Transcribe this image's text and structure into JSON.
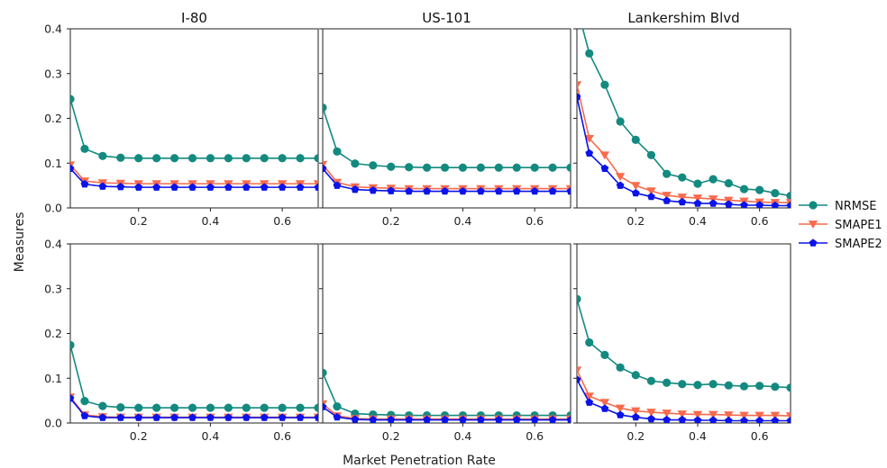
{
  "figure": {
    "xlabel": "Market Penetration Rate",
    "ylabel": "Measures"
  },
  "legend": {
    "placement": "right",
    "entries": [
      {
        "name": "NRMSE",
        "color": "#138a80",
        "marker": "circle"
      },
      {
        "name": "SMAPE1",
        "color": "#f86a4c",
        "marker": "triangle-down"
      },
      {
        "name": "SMAPE2",
        "color": "#0b13e8",
        "marker": "pentagon"
      }
    ]
  },
  "chart_data": [
    {
      "type": "line",
      "title": "I-80",
      "row": 1,
      "col": 1,
      "xlim": [
        0.01,
        0.7
      ],
      "ylim": [
        0,
        0.4
      ],
      "xticks": [
        "0.2",
        "0.4",
        "0.6"
      ],
      "yticks": [
        "0.0",
        "0.1",
        "0.2",
        "0.3",
        "0.4"
      ],
      "x": [
        0.01,
        0.05,
        0.1,
        0.15,
        0.2,
        0.25,
        0.3,
        0.35,
        0.4,
        0.45,
        0.5,
        0.55,
        0.6,
        0.65,
        0.7
      ],
      "series": [
        {
          "name": "NRMSE",
          "values": [
            0.243,
            0.132,
            0.116,
            0.112,
            0.111,
            0.111,
            0.111,
            0.111,
            0.111,
            0.111,
            0.111,
            0.111,
            0.111,
            0.111,
            0.111
          ]
        },
        {
          "name": "SMAPE1",
          "values": [
            0.096,
            0.06,
            0.056,
            0.055,
            0.054,
            0.054,
            0.054,
            0.054,
            0.054,
            0.054,
            0.054,
            0.054,
            0.054,
            0.054,
            0.054
          ]
        },
        {
          "name": "SMAPE2",
          "values": [
            0.088,
            0.053,
            0.048,
            0.047,
            0.046,
            0.046,
            0.046,
            0.046,
            0.046,
            0.046,
            0.046,
            0.046,
            0.046,
            0.046,
            0.046
          ]
        }
      ]
    },
    {
      "type": "line",
      "title": "US-101",
      "row": 1,
      "col": 2,
      "xlim": [
        0.01,
        0.7
      ],
      "ylim": [
        0,
        0.4
      ],
      "xticks": [
        "0.2",
        "0.4",
        "0.6"
      ],
      "yticks": [],
      "x": [
        0.01,
        0.05,
        0.1,
        0.15,
        0.2,
        0.25,
        0.3,
        0.35,
        0.4,
        0.45,
        0.5,
        0.55,
        0.6,
        0.65,
        0.7
      ],
      "series": [
        {
          "name": "NRMSE",
          "values": [
            0.224,
            0.126,
            0.099,
            0.095,
            0.092,
            0.091,
            0.09,
            0.09,
            0.09,
            0.09,
            0.09,
            0.09,
            0.09,
            0.09,
            0.09
          ]
        },
        {
          "name": "SMAPE1",
          "values": [
            0.097,
            0.057,
            0.047,
            0.045,
            0.044,
            0.043,
            0.043,
            0.043,
            0.043,
            0.043,
            0.043,
            0.043,
            0.043,
            0.043,
            0.043
          ]
        },
        {
          "name": "SMAPE2",
          "values": [
            0.088,
            0.05,
            0.041,
            0.039,
            0.038,
            0.037,
            0.037,
            0.037,
            0.037,
            0.037,
            0.037,
            0.037,
            0.037,
            0.037,
            0.037
          ]
        }
      ]
    },
    {
      "type": "line",
      "title": "Lankershim Blvd",
      "row": 1,
      "col": 3,
      "xlim": [
        0.01,
        0.7
      ],
      "ylim": [
        0,
        0.4
      ],
      "xticks": [
        "0.2",
        "0.4",
        "0.6"
      ],
      "yticks": [],
      "x": [
        0.01,
        0.05,
        0.1,
        0.15,
        0.2,
        0.25,
        0.3,
        0.35,
        0.4,
        0.45,
        0.5,
        0.55,
        0.6,
        0.65,
        0.7
      ],
      "series": [
        {
          "name": "NRMSE",
          "values": [
            0.45,
            0.345,
            0.275,
            0.193,
            0.152,
            0.118,
            0.076,
            0.068,
            0.054,
            0.064,
            0.055,
            0.042,
            0.04,
            0.033,
            0.027
          ]
        },
        {
          "name": "SMAPE1",
          "values": [
            0.275,
            0.155,
            0.118,
            0.07,
            0.05,
            0.038,
            0.028,
            0.024,
            0.022,
            0.02,
            0.017,
            0.015,
            0.013,
            0.012,
            0.012
          ]
        },
        {
          "name": "SMAPE2",
          "values": [
            0.248,
            0.122,
            0.088,
            0.05,
            0.033,
            0.025,
            0.016,
            0.013,
            0.01,
            0.01,
            0.008,
            0.006,
            0.006,
            0.005,
            0.005
          ]
        }
      ]
    },
    {
      "type": "line",
      "title": "",
      "row": 2,
      "col": 1,
      "xlim": [
        0.01,
        0.7
      ],
      "ylim": [
        0,
        0.4
      ],
      "xticks": [
        "0.2",
        "0.4",
        "0.6"
      ],
      "yticks": [
        "0.0",
        "0.1",
        "0.2",
        "0.3",
        "0.4"
      ],
      "x": [
        0.01,
        0.05,
        0.1,
        0.15,
        0.2,
        0.25,
        0.3,
        0.35,
        0.4,
        0.45,
        0.5,
        0.55,
        0.6,
        0.65,
        0.7
      ],
      "series": [
        {
          "name": "NRMSE",
          "values": [
            0.174,
            0.049,
            0.038,
            0.035,
            0.034,
            0.034,
            0.034,
            0.034,
            0.034,
            0.034,
            0.034,
            0.034,
            0.034,
            0.034,
            0.034
          ]
        },
        {
          "name": "SMAPE1",
          "values": [
            0.058,
            0.018,
            0.014,
            0.013,
            0.013,
            0.013,
            0.013,
            0.013,
            0.013,
            0.013,
            0.013,
            0.013,
            0.013,
            0.013,
            0.013
          ]
        },
        {
          "name": "SMAPE2",
          "values": [
            0.055,
            0.016,
            0.012,
            0.012,
            0.012,
            0.012,
            0.012,
            0.012,
            0.012,
            0.012,
            0.012,
            0.012,
            0.012,
            0.012,
            0.012
          ]
        }
      ]
    },
    {
      "type": "line",
      "title": "",
      "row": 2,
      "col": 2,
      "xlim": [
        0.01,
        0.7
      ],
      "ylim": [
        0,
        0.4
      ],
      "xticks": [
        "0.2",
        "0.4",
        "0.6"
      ],
      "yticks": [],
      "x": [
        0.01,
        0.05,
        0.1,
        0.15,
        0.2,
        0.25,
        0.3,
        0.35,
        0.4,
        0.45,
        0.5,
        0.55,
        0.6,
        0.65,
        0.7
      ],
      "series": [
        {
          "name": "NRMSE",
          "values": [
            0.112,
            0.037,
            0.021,
            0.019,
            0.018,
            0.017,
            0.017,
            0.017,
            0.017,
            0.017,
            0.017,
            0.017,
            0.017,
            0.017,
            0.017
          ]
        },
        {
          "name": "SMAPE1",
          "values": [
            0.043,
            0.016,
            0.01,
            0.009,
            0.009,
            0.009,
            0.009,
            0.009,
            0.009,
            0.009,
            0.009,
            0.009,
            0.009,
            0.009,
            0.009
          ]
        },
        {
          "name": "SMAPE2",
          "values": [
            0.036,
            0.013,
            0.008,
            0.007,
            0.007,
            0.007,
            0.007,
            0.007,
            0.007,
            0.007,
            0.007,
            0.007,
            0.007,
            0.007,
            0.007
          ]
        }
      ]
    },
    {
      "type": "line",
      "title": "",
      "row": 2,
      "col": 3,
      "xlim": [
        0.01,
        0.7
      ],
      "ylim": [
        0,
        0.4
      ],
      "xticks": [
        "0.2",
        "0.4",
        "0.6"
      ],
      "yticks": [],
      "x": [
        0.01,
        0.05,
        0.1,
        0.15,
        0.2,
        0.25,
        0.3,
        0.35,
        0.4,
        0.45,
        0.5,
        0.55,
        0.6,
        0.65,
        0.7
      ],
      "series": [
        {
          "name": "NRMSE",
          "values": [
            0.277,
            0.18,
            0.152,
            0.124,
            0.107,
            0.094,
            0.09,
            0.087,
            0.085,
            0.087,
            0.084,
            0.082,
            0.083,
            0.081,
            0.079
          ]
        },
        {
          "name": "SMAPE1",
          "values": [
            0.118,
            0.06,
            0.046,
            0.033,
            0.027,
            0.024,
            0.022,
            0.02,
            0.019,
            0.019,
            0.018,
            0.017,
            0.017,
            0.017,
            0.016
          ]
        },
        {
          "name": "SMAPE2",
          "values": [
            0.097,
            0.046,
            0.032,
            0.018,
            0.013,
            0.009,
            0.007,
            0.007,
            0.006,
            0.006,
            0.005,
            0.005,
            0.005,
            0.005,
            0.005
          ]
        }
      ]
    }
  ]
}
